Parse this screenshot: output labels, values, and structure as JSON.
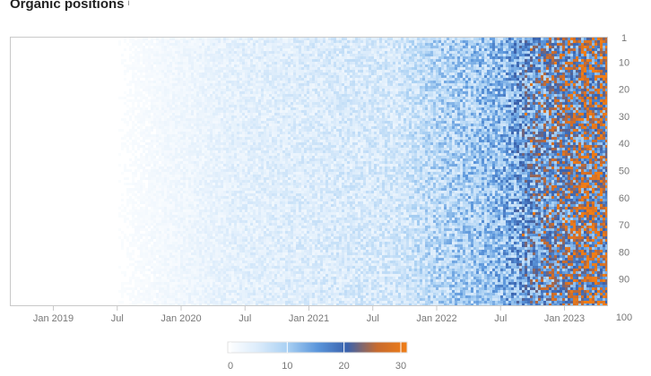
{
  "header": {
    "title": "Organic positions",
    "info_icon": "i"
  },
  "colors": {
    "scale": [
      "#ffffff",
      "#dcecfb",
      "#a9d0f3",
      "#5b96db",
      "#3a62ad",
      "#c76b2f",
      "#f07d16"
    ]
  },
  "chart_data": {
    "type": "heatmap",
    "title": "Organic positions",
    "x_tick_labels": [
      "Jan 2019",
      "Jul",
      "Jan 2020",
      "Jul",
      "Jan 2021",
      "Jul",
      "Jan 2022",
      "Jul",
      "Jan 2023"
    ],
    "x_range": [
      "2018-09",
      "2023-05"
    ],
    "y_tick_labels": [
      "1",
      "10",
      "20",
      "30",
      "40",
      "50",
      "60",
      "70",
      "80",
      "90",
      "100"
    ],
    "y_range": [
      1,
      100
    ],
    "color_scale": {
      "min": 0,
      "max": 30,
      "tick_labels": [
        "0",
        "10",
        "20",
        "30"
      ]
    },
    "intensity_profile": [
      {
        "date": "2018-09",
        "level": 0
      },
      {
        "date": "2019-06",
        "level": 0.3
      },
      {
        "date": "2019-12",
        "level": 2
      },
      {
        "date": "2020-06",
        "level": 4
      },
      {
        "date": "2021-01",
        "level": 5
      },
      {
        "date": "2021-09",
        "level": 6
      },
      {
        "date": "2022-01",
        "level": 9
      },
      {
        "date": "2022-07",
        "level": 12
      },
      {
        "date": "2022-10",
        "level": 17
      },
      {
        "date": "2023-01",
        "level": 20
      },
      {
        "date": "2023-04",
        "level": 23
      }
    ]
  }
}
